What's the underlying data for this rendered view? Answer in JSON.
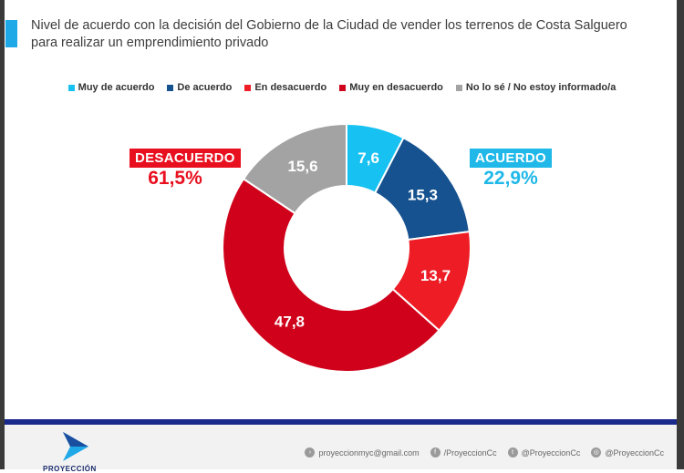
{
  "header": {
    "title_line1": "Nivel de acuerdo con la decisión del Gobierno de la Ciudad de vender los terrenos de Costa Salguero",
    "title_line2": "para realizar un emprendimiento privado"
  },
  "groups": {
    "disagree": {
      "label": "DESACUERDO",
      "value": "61,5%",
      "color": "#e8101f"
    },
    "agree": {
      "label": "ACUERDO",
      "value": "22,9%",
      "color": "#1fb8e8"
    }
  },
  "chart_data": {
    "type": "pie",
    "donut": true,
    "categories": [
      "Muy de acuerdo",
      "De acuerdo",
      "En desacuerdo",
      "Muy en desacuerdo",
      "No lo sé / No estoy informado/a"
    ],
    "values": [
      7.6,
      15.3,
      13.7,
      47.8,
      15.6
    ],
    "value_labels": [
      "7,6",
      "15,3",
      "13,7",
      "47,8",
      "15,6"
    ],
    "colors": [
      "#17c1f2",
      "#16528f",
      "#ee1c25",
      "#d0021b",
      "#a3a3a3"
    ],
    "legend_position": "top"
  },
  "footer": {
    "logo_text": "PROYECCIÓN",
    "logo_icon": "arrow-logo-icon",
    "contacts": [
      {
        "icon": "email-icon",
        "glyph": "›",
        "text": "proyeccionmyc@gmail.com"
      },
      {
        "icon": "facebook-icon",
        "glyph": "f",
        "text": "/ProyeccionCc"
      },
      {
        "icon": "twitter-icon",
        "glyph": "t",
        "text": "@ProyeccionCc"
      },
      {
        "icon": "instagram-icon",
        "glyph": "◎",
        "text": "@ProyeccionCc"
      }
    ]
  }
}
